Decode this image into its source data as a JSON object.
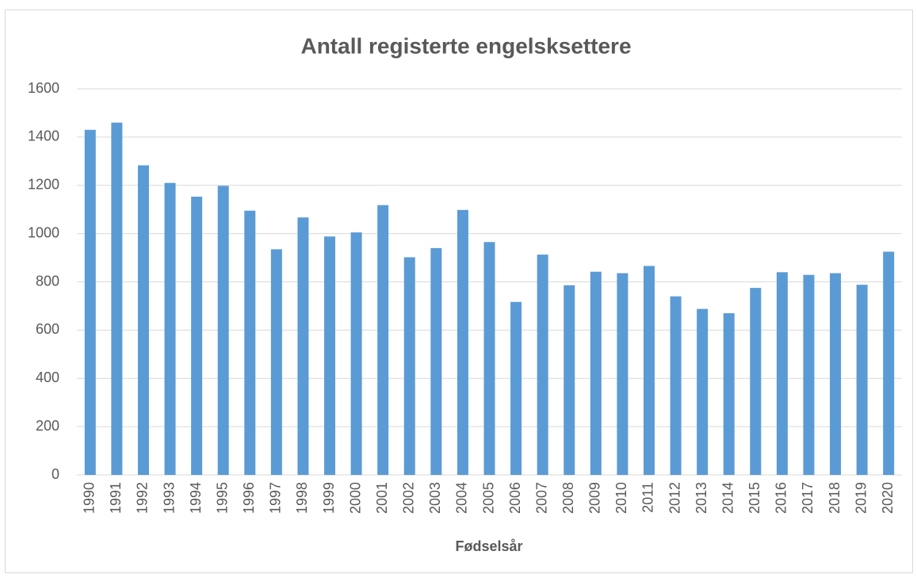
{
  "chart_data": {
    "type": "bar",
    "title": "Antall registerte engelsksettere",
    "x_label": "Fødselsår",
    "categories": [
      "1990",
      "1991",
      "1992",
      "1993",
      "1994",
      "1995",
      "1996",
      "1997",
      "1998",
      "1999",
      "2000",
      "2001",
      "2002",
      "2003",
      "2004",
      "2005",
      "2006",
      "2007",
      "2008",
      "2009",
      "2010",
      "2011",
      "2012",
      "2013",
      "2014",
      "2015",
      "2016",
      "2017",
      "2018",
      "2019",
      "2020"
    ],
    "values": [
      1430,
      1460,
      1283,
      1210,
      1153,
      1198,
      1095,
      935,
      1067,
      988,
      1005,
      1118,
      902,
      940,
      1098,
      965,
      717,
      913,
      786,
      842,
      836,
      866,
      740,
      688,
      670,
      775,
      840,
      829,
      836,
      788,
      925
    ],
    "color": "#5b9bd5",
    "ylim": [
      0,
      1600
    ],
    "yticks": [
      0,
      200,
      400,
      600,
      800,
      1000,
      1200,
      1400,
      1600
    ],
    "grid": true
  }
}
